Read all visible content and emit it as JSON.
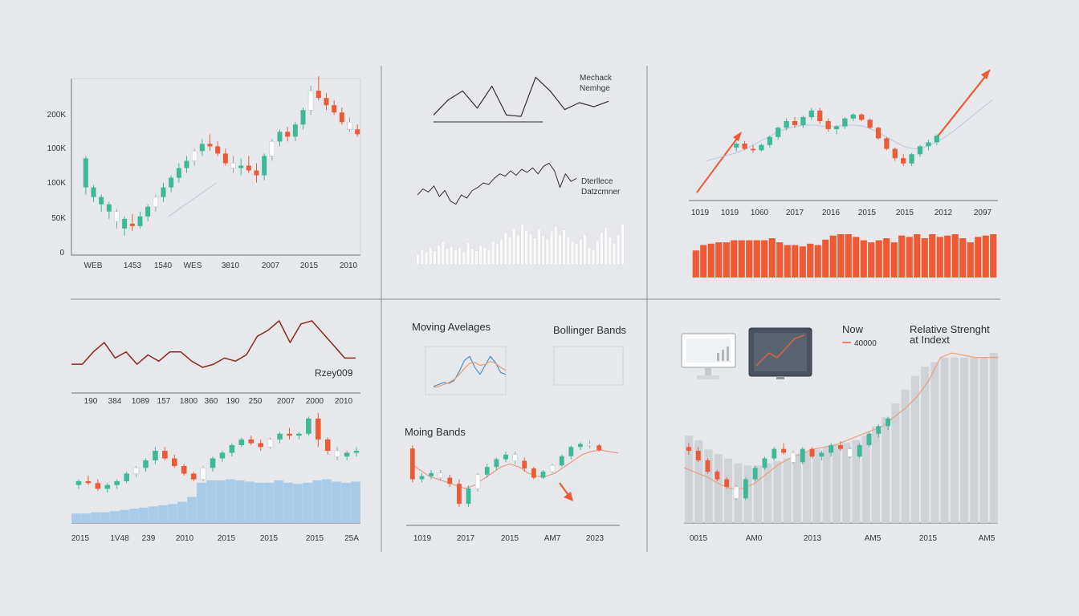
{
  "colors": {
    "background": "#e6e8eb",
    "up": "#3db898",
    "down": "#ec5b38",
    "neutral": "#ffffff",
    "line_dark": "#2f2f2f",
    "line_red": "#8a2a1e",
    "volume_blue": "#a9cbea",
    "volume_grey": "#cfd3d8",
    "volume_white": "#fbfbfb",
    "accent_orange": "#ee5a34",
    "axis": "#6e747a",
    "monitor_dark": "#4a5260"
  },
  "chart_data": [
    {
      "id": "p1",
      "type": "candlestick",
      "ylabels": [
        "200K",
        "100K",
        "100K",
        "50K",
        "0"
      ],
      "xlabels": [
        "WEB",
        "1453",
        "1540",
        "WES",
        "3810",
        "2007",
        "2015",
        "2010"
      ],
      "ohlc": [
        [
          28,
          41,
          25,
          40
        ],
        [
          24,
          29,
          22,
          28
        ],
        [
          21,
          25,
          18,
          24
        ],
        [
          18,
          22,
          15,
          21
        ],
        [
          14,
          19,
          11,
          18
        ],
        [
          11,
          16,
          8,
          15
        ],
        [
          13,
          17,
          10,
          12
        ],
        [
          12,
          18,
          11,
          16
        ],
        [
          16,
          21,
          14,
          20
        ],
        [
          20,
          25,
          18,
          24
        ],
        [
          24,
          30,
          22,
          28
        ],
        [
          28,
          33,
          26,
          32
        ],
        [
          32,
          38,
          30,
          36
        ],
        [
          36,
          41,
          34,
          39
        ],
        [
          39,
          44,
          37,
          43
        ],
        [
          43,
          48,
          41,
          46
        ],
        [
          46,
          50,
          43,
          45
        ],
        [
          45,
          47,
          41,
          42
        ],
        [
          42,
          44,
          37,
          38
        ],
        [
          38,
          41,
          34,
          36
        ],
        [
          36,
          40,
          33,
          37
        ],
        [
          37,
          41,
          34,
          35
        ],
        [
          35,
          38,
          30,
          33
        ],
        [
          33,
          42,
          31,
          41
        ],
        [
          41,
          48,
          39,
          47
        ],
        [
          47,
          52,
          45,
          51
        ],
        [
          51,
          53,
          47,
          49
        ],
        [
          49,
          55,
          47,
          54
        ],
        [
          54,
          61,
          52,
          60
        ],
        [
          60,
          70,
          58,
          68
        ],
        [
          68,
          74,
          64,
          65
        ],
        [
          65,
          67,
          60,
          62
        ],
        [
          62,
          64,
          58,
          59
        ],
        [
          59,
          61,
          54,
          55
        ],
        [
          55,
          57,
          51,
          52
        ],
        [
          52,
          54,
          49,
          50
        ]
      ]
    },
    {
      "id": "p2a",
      "type": "line",
      "legend": [
        "Mechack",
        "Nemhge"
      ],
      "values": [
        40,
        62,
        75,
        50,
        82,
        40,
        38,
        95,
        75,
        48,
        58,
        52,
        60
      ]
    },
    {
      "id": "p2b",
      "type": "line",
      "legend": [
        "Dterllece",
        "Datzcmner"
      ],
      "values": [
        30,
        38,
        34,
        42,
        28,
        36,
        22,
        18,
        30,
        26,
        36,
        40,
        46,
        44,
        52,
        58,
        55,
        62,
        56,
        64,
        60,
        66,
        58,
        68,
        72,
        62,
        40,
        58,
        48,
        52
      ]
    },
    {
      "id": "p2c",
      "type": "bar",
      "values": [
        18,
        26,
        22,
        30,
        24,
        34,
        40,
        28,
        32,
        26,
        30,
        22,
        38,
        28,
        24,
        34,
        30,
        26,
        40,
        36,
        44,
        56,
        48,
        62,
        52,
        70,
        60,
        54,
        46,
        62,
        50,
        44,
        58,
        66,
        52,
        60,
        48,
        40,
        36,
        44,
        52,
        30,
        26,
        42,
        56,
        64,
        48,
        38,
        52,
        70
      ]
    },
    {
      "id": "p3",
      "type": "candlestick",
      "xlabels": [
        "1019",
        "1019",
        "1060",
        "2017",
        "2016",
        "2015",
        "2015",
        "2012",
        "2097"
      ],
      "ohlc": [
        [
          40,
          44,
          37,
          43
        ],
        [
          43,
          45,
          38,
          39
        ],
        [
          39,
          42,
          36,
          38
        ],
        [
          38,
          43,
          37,
          42
        ],
        [
          42,
          49,
          40,
          48
        ],
        [
          48,
          56,
          46,
          55
        ],
        [
          55,
          62,
          53,
          60
        ],
        [
          60,
          63,
          55,
          57
        ],
        [
          57,
          64,
          55,
          63
        ],
        [
          63,
          70,
          61,
          68
        ],
        [
          68,
          70,
          58,
          60
        ],
        [
          60,
          62,
          52,
          54
        ],
        [
          54,
          57,
          50,
          56
        ],
        [
          56,
          63,
          54,
          62
        ],
        [
          62,
          66,
          60,
          65
        ],
        [
          65,
          66,
          60,
          61
        ],
        [
          61,
          62,
          54,
          55
        ],
        [
          55,
          56,
          46,
          47
        ],
        [
          47,
          48,
          38,
          39
        ],
        [
          39,
          40,
          30,
          32
        ],
        [
          32,
          35,
          26,
          28
        ],
        [
          28,
          36,
          26,
          35
        ],
        [
          35,
          42,
          33,
          41
        ],
        [
          41,
          46,
          38,
          44
        ],
        [
          44,
          50,
          42,
          49
        ]
      ],
      "ma": [
        30,
        32,
        34,
        36,
        39,
        43,
        47,
        51,
        54,
        56,
        57,
        57,
        56,
        56,
        57,
        57,
        56,
        53,
        49,
        45,
        41,
        39,
        40,
        43,
        47,
        52,
        58,
        64,
        70,
        76
      ],
      "volume": [
        40,
        48,
        50,
        52,
        52,
        55,
        55,
        55,
        55,
        55,
        58,
        52,
        48,
        48,
        46,
        50,
        48,
        56,
        62,
        64,
        64,
        60,
        55,
        52,
        55,
        58,
        52,
        62,
        60,
        64,
        58,
        64,
        60,
        62,
        64,
        58,
        52,
        60,
        62,
        64
      ]
    },
    {
      "id": "p4",
      "type": "line",
      "label": "Rzey009",
      "xlabels": [
        "190",
        "384",
        "1089",
        "157",
        "1800",
        "360",
        "190",
        "250",
        "2007",
        "2000",
        "2010"
      ],
      "values": [
        42,
        42,
        50,
        56,
        46,
        50,
        42,
        48,
        44,
        50,
        50,
        44,
        40,
        42,
        46,
        44,
        48,
        60,
        64,
        70,
        56,
        68,
        70,
        62,
        54,
        46,
        46
      ]
    },
    {
      "id": "p5",
      "type": "candlestick",
      "xlabels": [
        "2015",
        "1V48",
        "239",
        "2010",
        "2015",
        "2015",
        "2015",
        "25A"
      ],
      "ohlc": [
        [
          20,
          23,
          18,
          22
        ],
        [
          22,
          25,
          20,
          21
        ],
        [
          21,
          23,
          17,
          18
        ],
        [
          18,
          21,
          16,
          20
        ],
        [
          20,
          23,
          18,
          22
        ],
        [
          22,
          27,
          21,
          26
        ],
        [
          26,
          30,
          24,
          29
        ],
        [
          29,
          34,
          27,
          33
        ],
        [
          33,
          40,
          31,
          38
        ],
        [
          38,
          40,
          33,
          34
        ],
        [
          34,
          36,
          29,
          30
        ],
        [
          30,
          31,
          25,
          26
        ],
        [
          26,
          27,
          22,
          23
        ],
        [
          23,
          30,
          22,
          29
        ],
        [
          29,
          35,
          27,
          34
        ],
        [
          34,
          38,
          32,
          37
        ],
        [
          37,
          42,
          35,
          41
        ],
        [
          41,
          45,
          40,
          44
        ],
        [
          44,
          46,
          41,
          42
        ],
        [
          42,
          44,
          38,
          40
        ],
        [
          40,
          45,
          39,
          44
        ],
        [
          44,
          48,
          42,
          47
        ],
        [
          47,
          50,
          44,
          46
        ],
        [
          46,
          48,
          44,
          47
        ],
        [
          47,
          56,
          46,
          55
        ],
        [
          55,
          58,
          40,
          44
        ],
        [
          44,
          45,
          36,
          38
        ],
        [
          38,
          40,
          33,
          35
        ],
        [
          35,
          38,
          33,
          37
        ],
        [
          37,
          40,
          35,
          38
        ]
      ],
      "volume": [
        8,
        8,
        9,
        9,
        10,
        11,
        12,
        13,
        14,
        15,
        16,
        18,
        22,
        34,
        36,
        36,
        37,
        36,
        35,
        34,
        34,
        36,
        34,
        33,
        34,
        36,
        37,
        35,
        34,
        35
      ]
    },
    {
      "id": "p6a",
      "type": "line",
      "title": "Moving Avelages",
      "series": [
        {
          "values": [
            10,
            14,
            18,
            16,
            22,
            40,
            62,
            70,
            48,
            34,
            52,
            70,
            58,
            38,
            34
          ]
        },
        {
          "values": [
            8,
            10,
            14,
            18,
            24,
            34,
            46,
            56,
            58,
            52,
            54,
            60,
            56,
            48,
            42
          ]
        }
      ]
    },
    {
      "id": "p6b",
      "type": "line",
      "title": "Bollinger Bands"
    },
    {
      "id": "p7",
      "type": "candlestick",
      "title": "Moing Bands",
      "xlabels": [
        "1019",
        "2017",
        "2015",
        "AM7",
        "2023"
      ],
      "ohlc": [
        [
          50,
          52,
          28,
          30
        ],
        [
          30,
          34,
          28,
          32
        ],
        [
          32,
          36,
          30,
          34
        ],
        [
          34,
          36,
          29,
          31
        ],
        [
          31,
          33,
          25,
          27
        ],
        [
          27,
          30,
          12,
          14
        ],
        [
          14,
          26,
          12,
          24
        ],
        [
          24,
          34,
          22,
          33
        ],
        [
          33,
          40,
          31,
          38
        ],
        [
          38,
          44,
          36,
          43
        ],
        [
          43,
          48,
          41,
          46
        ],
        [
          46,
          48,
          40,
          42
        ],
        [
          42,
          44,
          35,
          37
        ],
        [
          37,
          38,
          30,
          31
        ],
        [
          31,
          36,
          30,
          35
        ],
        [
          35,
          40,
          34,
          39
        ],
        [
          39,
          46,
          38,
          45
        ],
        [
          45,
          52,
          43,
          51
        ],
        [
          51,
          54,
          49,
          53
        ],
        [
          53,
          55,
          50,
          52
        ],
        [
          52,
          53,
          48,
          49
        ]
      ],
      "ma": [
        40,
        36,
        32,
        30,
        28,
        26,
        24,
        26,
        30,
        34,
        38,
        40,
        38,
        34,
        32,
        32,
        34,
        38,
        42,
        46,
        48,
        49,
        48,
        47
      ]
    },
    {
      "id": "p8",
      "type": "candlestick",
      "labels": [
        "Now",
        "Relative Strenght",
        "at Indext"
      ],
      "value_label": "40000",
      "xlabels": [
        "0015",
        "AM0",
        "2013",
        "AM5",
        "2015",
        "AM5"
      ],
      "ohlc": [
        [
          40,
          42,
          36,
          38
        ],
        [
          38,
          40,
          32,
          33
        ],
        [
          33,
          34,
          26,
          27
        ],
        [
          27,
          28,
          22,
          23
        ],
        [
          23,
          24,
          18,
          19
        ],
        [
          19,
          20,
          12,
          13
        ],
        [
          13,
          24,
          12,
          23
        ],
        [
          23,
          30,
          22,
          29
        ],
        [
          29,
          35,
          28,
          34
        ],
        [
          34,
          40,
          33,
          39
        ],
        [
          39,
          42,
          36,
          37
        ],
        [
          37,
          38,
          31,
          32
        ],
        [
          32,
          40,
          31,
          39
        ],
        [
          39,
          40,
          34,
          35
        ],
        [
          35,
          38,
          33,
          37
        ],
        [
          37,
          42,
          35,
          41
        ],
        [
          41,
          43,
          38,
          39
        ],
        [
          39,
          40,
          34,
          35
        ],
        [
          35,
          42,
          34,
          41
        ],
        [
          41,
          48,
          40,
          47
        ],
        [
          47,
          52,
          45,
          51
        ],
        [
          51,
          56,
          49,
          55
        ]
      ],
      "ma": [
        24,
        22,
        20,
        17,
        15,
        15,
        17,
        21,
        25,
        28,
        30,
        32,
        33,
        34,
        36,
        38,
        40,
        42,
        46,
        50,
        55,
        62,
        72,
        74,
        73,
        72,
        72,
        72
      ],
      "volume": [
        38,
        36,
        32,
        30,
        28,
        26,
        25,
        25,
        26,
        27,
        28,
        30,
        31,
        32,
        33,
        34,
        35,
        36,
        38,
        42,
        46,
        52,
        58,
        64,
        68,
        70,
        72,
        72,
        72,
        72,
        72,
        74
      ]
    }
  ]
}
